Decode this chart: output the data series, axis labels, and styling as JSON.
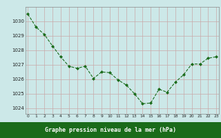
{
  "x": [
    0,
    1,
    2,
    3,
    4,
    5,
    6,
    7,
    8,
    9,
    10,
    11,
    12,
    13,
    14,
    15,
    16,
    17,
    18,
    19,
    20,
    21,
    22,
    23
  ],
  "y": [
    1030.5,
    1029.6,
    1029.1,
    1028.3,
    1027.55,
    1026.9,
    1026.75,
    1026.9,
    1026.05,
    1026.5,
    1026.45,
    1025.95,
    1025.6,
    1025.0,
    1024.3,
    1024.35,
    1025.3,
    1025.1,
    1025.8,
    1026.3,
    1027.05,
    1027.05,
    1027.45,
    1027.55
  ],
  "line_color": "#1a6b1a",
  "marker_color": "#1a6b1a",
  "bg_color": "#cce8e8",
  "grid_color_major": "#c8a8a8",
  "grid_color_minor": "#d8c0c0",
  "xlabel": "Graphe pression niveau de la mer (hPa)",
  "xlabel_bg": "#1a6b1a",
  "ylabel_ticks": [
    1024,
    1025,
    1026,
    1027,
    1028,
    1029,
    1030
  ],
  "xlim": [
    -0.3,
    23.3
  ],
  "ylim": [
    1023.6,
    1031.0
  ],
  "xticks": [
    0,
    1,
    2,
    3,
    4,
    5,
    6,
    7,
    8,
    9,
    10,
    11,
    12,
    13,
    14,
    15,
    16,
    17,
    18,
    19,
    20,
    21,
    22,
    23
  ],
  "xtick_labels": [
    "0",
    "1",
    "2",
    "3",
    "4",
    "5",
    "6",
    "7",
    "8",
    "9",
    "10",
    "11",
    "12",
    "13",
    "14",
    "15",
    "16",
    "17",
    "18",
    "19",
    "20",
    "21",
    "22",
    "23"
  ]
}
